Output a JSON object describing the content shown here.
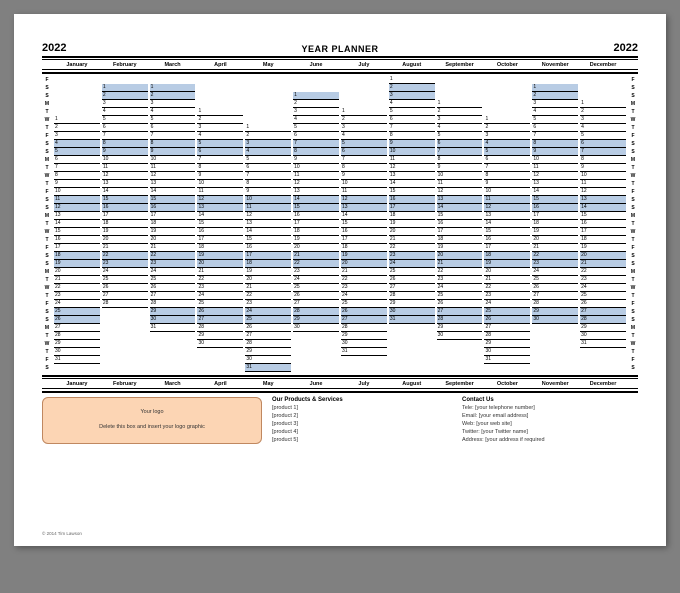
{
  "year": "2022",
  "title": "YEAR PLANNER",
  "months": [
    "January",
    "February",
    "March",
    "April",
    "May",
    "June",
    "July",
    "August",
    "September",
    "October",
    "November",
    "December"
  ],
  "month_starts": [
    5,
    1,
    1,
    4,
    6,
    2,
    4,
    0,
    3,
    5,
    1,
    3
  ],
  "month_lengths": [
    31,
    28,
    31,
    30,
    31,
    30,
    31,
    31,
    30,
    31,
    30,
    31
  ],
  "row_labels": [
    "F",
    "S",
    "S",
    "M",
    "T",
    "W",
    "T",
    "F",
    "S",
    "S",
    "M",
    "T",
    "W",
    "T",
    "F",
    "S",
    "S",
    "M",
    "T",
    "W",
    "T",
    "F",
    "S",
    "S",
    "M",
    "T",
    "W",
    "T",
    "F",
    "S",
    "S",
    "M",
    "T",
    "W",
    "T",
    "F",
    "S"
  ],
  "weekend_rows": [
    1,
    2,
    8,
    9,
    15,
    16,
    22,
    23,
    29,
    30,
    36
  ],
  "num_rows": 37,
  "colors": {
    "weekend": "#b8cce4",
    "logo_bg": "#fcd5b4",
    "logo_border": "#c08860",
    "page_bg": "#ffffff",
    "outer_bg": "#808080"
  },
  "logo_box": {
    "line1": "Your logo",
    "line2": "Delete this box and insert your logo graphic"
  },
  "products": {
    "heading": "Our Products & Services",
    "items": [
      "[product 1]",
      "[product 2]",
      "[product 3]",
      "[product 4]",
      "[product 5]"
    ]
  },
  "contact": {
    "heading": "Contact Us",
    "items": [
      "Tele: [your telephone number]",
      "Email: [your email address]",
      "Web: [your web site]",
      "Twitter: [your Twitter name]",
      "Address: [your address if required"
    ]
  },
  "copyright": "© 2014 Tim Lawson"
}
